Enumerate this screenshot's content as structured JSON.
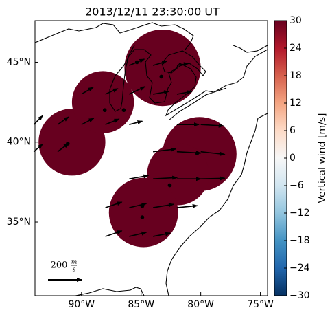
{
  "chart_data": {
    "type": "map",
    "title": "2013/12/11 23:30:00 UT",
    "xlim": [
      -93.9,
      -74.4
    ],
    "ylim": [
      30.4,
      47.6
    ],
    "xticks": [
      {
        "value": -90,
        "label": "90°W"
      },
      {
        "value": -85,
        "label": "85°W"
      },
      {
        "value": -80,
        "label": "80°W"
      },
      {
        "value": -75,
        "label": "75°W"
      }
    ],
    "yticks": [
      {
        "value": 45,
        "label": "45°N"
      },
      {
        "value": 40,
        "label": "40°N"
      },
      {
        "value": 35,
        "label": "35°N"
      }
    ],
    "colorbar": {
      "label": "Vertical wind [m/s]",
      "clim": [
        -30,
        30
      ],
      "colors": [
        "#053061",
        "#2166ac",
        "#4393c3",
        "#92c5de",
        "#d1e5f0",
        "#f7f7f7",
        "#fddbc7",
        "#f4a582",
        "#d6604d",
        "#b2182b",
        "#67001f"
      ],
      "ticks": [
        30,
        24,
        18,
        12,
        6,
        0,
        {
          "value": -6,
          "label": "−6"
        },
        {
          "value": -12,
          "label": "−12"
        },
        {
          "value": -18,
          "label": "−18"
        },
        {
          "value": -24,
          "label": "−24"
        },
        {
          "value": -30,
          "label": "−30"
        }
      ]
    },
    "regions": [
      {
        "lon": -90.8,
        "lat": 40.0,
        "r": 2.8,
        "value": 30
      },
      {
        "lon": -88.2,
        "lat": 42.5,
        "r": 2.6,
        "value": 30
      },
      {
        "lon": -83.2,
        "lat": 44.65,
        "r": 3.2,
        "value": 30
      },
      {
        "lon": -80.1,
        "lat": 39.25,
        "r": 3.1,
        "value": 30
      },
      {
        "lon": -81.9,
        "lat": 38.0,
        "r": 2.6,
        "value": 30
      },
      {
        "lon": -84.8,
        "lat": 35.6,
        "r": 2.9,
        "value": 30
      }
    ],
    "sites": [
      [
        -91.15,
        39.9
      ],
      [
        -88.05,
        42.0
      ],
      [
        -86.45,
        42.0
      ],
      [
        -85.35,
        45.0
      ],
      [
        -83.3,
        44.1
      ],
      [
        -80.3,
        39.3
      ],
      [
        -82.6,
        37.3
      ],
      [
        -84.9,
        36.0
      ],
      [
        -84.9,
        35.3
      ]
    ],
    "arrows": [
      [
        -88,
        34.1,
        98,
        33
      ],
      [
        -86,
        34.1,
        102,
        24
      ],
      [
        -84,
        34.1,
        102,
        20
      ],
      [
        -88,
        35.9,
        98,
        33
      ],
      [
        -86,
        35.9,
        102,
        24
      ],
      [
        -84,
        35.9,
        122,
        20
      ],
      [
        -82,
        35.9,
        122,
        12
      ],
      [
        -86,
        37.7,
        114,
        20
      ],
      [
        -84,
        37.7,
        143,
        8
      ],
      [
        -82,
        37.7,
        143,
        0
      ],
      [
        -80,
        37.7,
        143,
        4
      ],
      [
        -84,
        39.4,
        135,
        16
      ],
      [
        -82,
        39.4,
        143,
        -8
      ],
      [
        -80,
        39.4,
        143,
        -16
      ],
      [
        -82,
        41.1,
        131,
        0
      ],
      [
        -80,
        41.1,
        135,
        -8
      ],
      [
        -94,
        41.1,
        53,
        53
      ],
      [
        -92,
        41.1,
        65,
        45
      ],
      [
        -90,
        41.1,
        73,
        37
      ],
      [
        -88,
        41.1,
        82,
        33
      ],
      [
        -86,
        41.1,
        78,
        20
      ],
      [
        -94,
        39.4,
        53,
        45
      ],
      [
        -92,
        39.4,
        65,
        49
      ],
      [
        -90,
        43.0,
        70,
        41
      ],
      [
        -88,
        43.0,
        74,
        33
      ],
      [
        -86,
        43.0,
        94,
        45
      ],
      [
        -84,
        43.0,
        94,
        16
      ],
      [
        -82,
        43.0,
        90,
        16
      ],
      [
        -86,
        44.8,
        90,
        37
      ],
      [
        -84,
        44.8,
        82,
        25
      ],
      [
        -82,
        44.8,
        70,
        12
      ]
    ],
    "quiver_key": {
      "value": 200,
      "unit_top": "m",
      "unit_bottom": "s"
    }
  }
}
